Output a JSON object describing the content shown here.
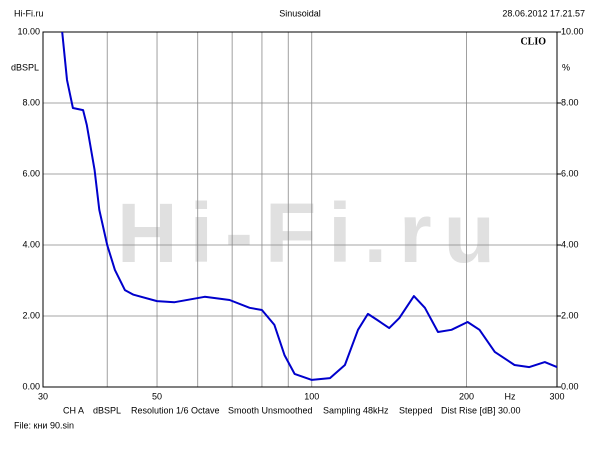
{
  "chart_data": {
    "type": "line",
    "header_left": "Hi-Fi.ru",
    "title": "Sinusoidal",
    "timestamp": "28.06.2012 17.21.57",
    "brand": "CLIO",
    "watermark": "Hi-Fi.ru",
    "ylabel": "dBSPL",
    "y2label": "%",
    "xlabel": "Hz",
    "footer": [
      "CH A",
      "dBSPL",
      "Resolution 1/6 Octave",
      "Smooth Unsmoothed",
      "Sampling 48kHz",
      "Stepped",
      "Dist Rise [dB] 30.00"
    ],
    "file": "File: кни 90.sin",
    "xscale": "log",
    "xlim": [
      30,
      300
    ],
    "xticks": [
      30,
      50,
      100,
      200,
      300
    ],
    "x_minor_grid": [
      40,
      60,
      70,
      80,
      90
    ],
    "ylim": [
      0,
      10
    ],
    "yticks": [
      {
        "value": 0,
        "label": "0.00"
      },
      {
        "value": 2,
        "label": "2.00"
      },
      {
        "value": 4,
        "label": "4.00"
      },
      {
        "value": 6,
        "label": "6.00"
      },
      {
        "value": 8,
        "label": "8.00"
      },
      {
        "value": 10,
        "label": "10.00"
      }
    ],
    "y2lim": [
      0,
      10
    ],
    "y2ticks": [
      {
        "value": 0,
        "label": "0.00"
      },
      {
        "value": 2,
        "label": "2.00"
      },
      {
        "value": 4,
        "label": "4.00"
      },
      {
        "value": 6,
        "label": "6.00"
      },
      {
        "value": 8,
        "label": "8.00"
      },
      {
        "value": 10,
        "label": "10.00"
      }
    ],
    "grid": true,
    "x": [
      32.7,
      33.4,
      34.3,
      35.9,
      36.5,
      37.8,
      38.6,
      40,
      41.4,
      43.3,
      45,
      50,
      54.1,
      61.9,
      69.2,
      75.7,
      80,
      84.6,
      88.5,
      92.6,
      100,
      108.5,
      116,
      123,
      128.6,
      134,
      141.5,
      148,
      158,
      166,
      176,
      187,
      201,
      212,
      227,
      248,
      265,
      284,
      300
    ],
    "series": [
      {
        "color": "#0000cc",
        "values": [
          10.0,
          8.65,
          7.86,
          7.8,
          7.38,
          6.11,
          4.99,
          4.0,
          3.3,
          2.73,
          2.6,
          2.42,
          2.39,
          2.54,
          2.45,
          2.23,
          2.17,
          1.75,
          0.9,
          0.37,
          0.2,
          0.25,
          0.62,
          1.61,
          2.06,
          1.89,
          1.66,
          1.94,
          2.56,
          2.23,
          1.55,
          1.61,
          1.83,
          1.61,
          0.99,
          0.62,
          0.56,
          0.7,
          0.56
        ]
      }
    ]
  }
}
